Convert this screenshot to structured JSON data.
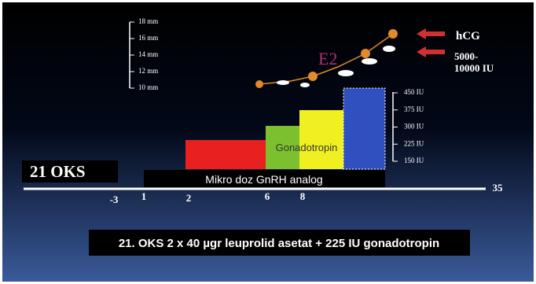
{
  "mm_scale": {
    "labels": [
      "18 mm",
      "16 mm",
      "14 mm",
      "12 mm",
      "10 mm"
    ]
  },
  "hormone_label": "E2",
  "trigger": {
    "name": "hCG",
    "dose_lines": [
      "5000-",
      "10000 IU"
    ]
  },
  "iu_scale": {
    "labels": [
      "450 IU",
      "375 IU",
      "300 IU",
      "225 IU",
      "150 IU"
    ]
  },
  "gonadotropin_label": "Gonadotropin",
  "oks_label": "21 OKS",
  "gnrh_label": "Mikro doz GnRH analog",
  "days": [
    "-3",
    "1",
    "2",
    "6",
    "8",
    "35"
  ],
  "caption": "21. OKS 2 x 40 µgr leuprolid asetat + 225 IU gonadotropin"
}
